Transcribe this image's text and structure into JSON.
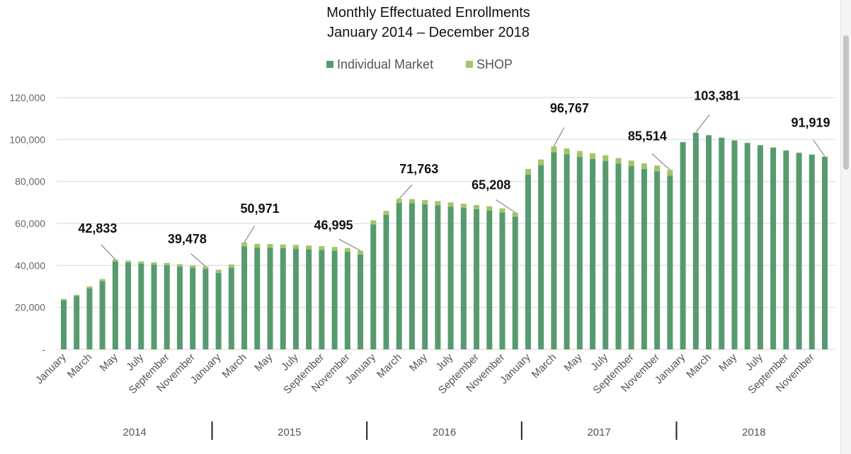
{
  "chart_data": {
    "type": "bar",
    "stacked": true,
    "title": "Monthly Effectuated Enrollments",
    "subtitle": "January 2014 – December 2018",
    "legend_position": "top",
    "grid": true,
    "ylim": [
      0,
      120000
    ],
    "yticks": [
      "-",
      "20,000",
      "40,000",
      "60,000",
      "80,000",
      "100,000",
      "120,000"
    ],
    "years": [
      "2014",
      "2015",
      "2016",
      "2017",
      "2018"
    ],
    "month_labels": [
      "January",
      "March",
      "May",
      "July",
      "September",
      "November"
    ],
    "series": [
      {
        "name": "Individual Market",
        "color": "#579a6f",
        "values": [
          23400,
          25300,
          29000,
          32500,
          41900,
          41300,
          40800,
          40400,
          40100,
          39500,
          38900,
          38300,
          36400,
          38900,
          49100,
          48500,
          48400,
          48200,
          48000,
          47700,
          47400,
          47000,
          46500,
          45200,
          59600,
          64100,
          69800,
          69600,
          69200,
          68700,
          68000,
          67400,
          66800,
          66200,
          65200,
          63300,
          83300,
          87800,
          93900,
          93000,
          91800,
          90800,
          89800,
          88500,
          87300,
          86000,
          84900,
          82800,
          98700,
          103200,
          102000,
          100800,
          99500,
          98300,
          97200,
          96100,
          94700,
          93600,
          92700,
          91700
        ]
      },
      {
        "name": "SHOP",
        "color": "#a3c46a",
        "values": [
          600,
          700,
          1000,
          1000,
          933,
          1000,
          1100,
          1100,
          1100,
          1100,
          1100,
          1178,
          1600,
          1600,
          1871,
          1800,
          1800,
          1800,
          1800,
          1800,
          1800,
          1800,
          1800,
          1795,
          1900,
          1900,
          1963,
          2000,
          2000,
          2000,
          2000,
          2000,
          2000,
          2000,
          2000,
          1908,
          2700,
          2700,
          2867,
          2800,
          2700,
          2700,
          2700,
          2700,
          2700,
          2700,
          2700,
          2714,
          200,
          181,
          200,
          200,
          200,
          200,
          200,
          200,
          200,
          200,
          200,
          219
        ]
      }
    ],
    "data_labels": [
      {
        "index": 4,
        "text": "42,833"
      },
      {
        "index": 11,
        "text": "39,478"
      },
      {
        "index": 14,
        "text": "50,971"
      },
      {
        "index": 23,
        "text": "46,995"
      },
      {
        "index": 26,
        "text": "71,763"
      },
      {
        "index": 35,
        "text": "65,208"
      },
      {
        "index": 38,
        "text": "96,767"
      },
      {
        "index": 47,
        "text": "85,514"
      },
      {
        "index": 49,
        "text": "103,381"
      },
      {
        "index": 59,
        "text": "91,919"
      }
    ]
  }
}
